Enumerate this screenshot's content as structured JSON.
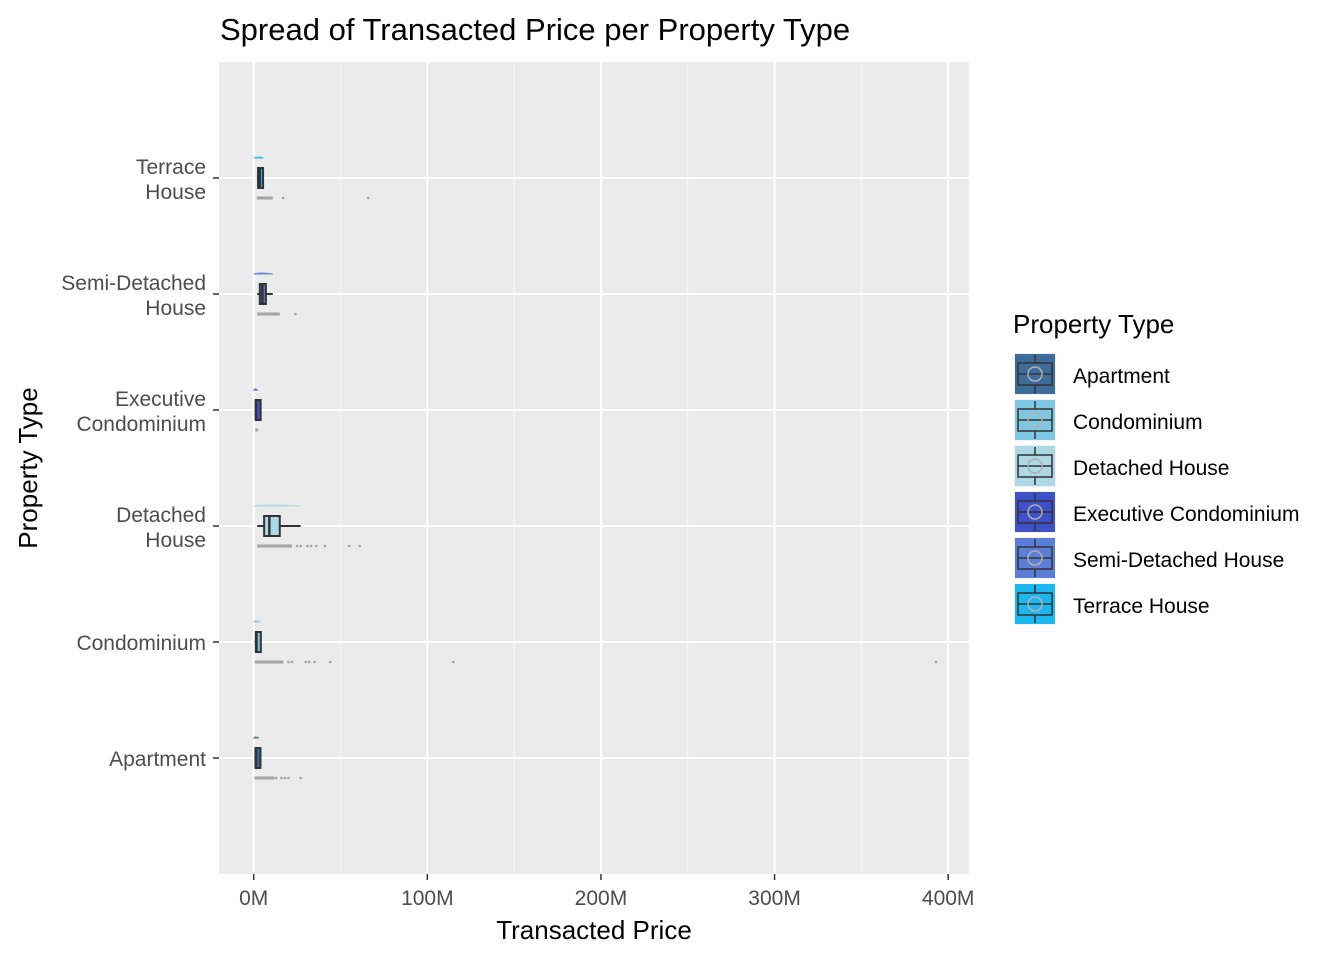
{
  "chart_data": {
    "type": "box",
    "title": "Spread of Transacted Price per Property Type",
    "xlabel": "Transacted Price",
    "ylabel": "Property Type",
    "xlim": [
      -20000000,
      412000000
    ],
    "x_ticks": [
      0,
      100000000,
      200000000,
      300000000,
      400000000
    ],
    "x_tick_labels": [
      "0M",
      "100M",
      "200M",
      "300M",
      "400M"
    ],
    "grid": true,
    "legend": {
      "title": "Property Type",
      "position": "right",
      "entries": [
        {
          "label": "Apartment",
          "color": "#3E6C9A"
        },
        {
          "label": "Condominium",
          "color": "#7EC8E3"
        },
        {
          "label": "Detached House",
          "color": "#ADD8E6"
        },
        {
          "label": "Executive Condominium",
          "color": "#3F51C8"
        },
        {
          "label": "Semi-Detached House",
          "color": "#5B7FD6"
        },
        {
          "label": "Terrace House",
          "color": "#1EB6EF"
        }
      ]
    },
    "categories": [
      {
        "label": [
          "Terrace",
          "House"
        ],
        "name": "Terrace House",
        "color": "#1EB6EF",
        "box": {
          "q1": 2500000,
          "median": 3500000,
          "q3": 4500000,
          "whisker_low": 1800000,
          "whisker_high": 5500000
        },
        "strip_max": 11000000,
        "outliers": [
          17000000,
          66000000
        ]
      },
      {
        "label": [
          "Semi-Detached",
          "House"
        ],
        "name": "Semi-Detached House",
        "color": "#5B7FD6",
        "box": {
          "q1": 3500000,
          "median": 5000000,
          "q3": 7000000,
          "whisker_low": 2000000,
          "whisker_high": 11000000
        },
        "strip_max": 15000000,
        "outliers": [
          24000000
        ]
      },
      {
        "label": [
          "Executive",
          "Condominium"
        ],
        "name": "Executive Condominium",
        "color": "#3F51C8",
        "box": {
          "q1": 1100000,
          "median": 1300000,
          "q3": 1600000,
          "whisker_low": 900000,
          "whisker_high": 2000000
        },
        "strip_max": 2500000,
        "outliers": []
      },
      {
        "label": [
          "Detached",
          "House"
        ],
        "name": "Detached House",
        "color": "#ADD8E6",
        "box": {
          "q1": 6000000,
          "median": 9000000,
          "q3": 15000000,
          "whisker_low": 2000000,
          "whisker_high": 27000000
        },
        "strip_max": 22000000,
        "outliers": [
          25000000,
          27000000,
          31000000,
          33000000,
          36000000,
          41000000,
          55000000,
          61000000
        ]
      },
      {
        "label": [
          "Condominium"
        ],
        "name": "Condominium",
        "color": "#7EC8E3",
        "box": {
          "q1": 1200000,
          "median": 1600000,
          "q3": 2300000,
          "whisker_low": 500000,
          "whisker_high": 3800000
        },
        "strip_max": 17000000,
        "outliers": [
          20000000,
          22000000,
          30000000,
          32000000,
          35000000,
          44000000,
          115000000,
          393000000
        ]
      },
      {
        "label": [
          "Apartment"
        ],
        "name": "Apartment",
        "color": "#3E6C9A",
        "box": {
          "q1": 1000000,
          "median": 1300000,
          "q3": 1800000,
          "whisker_low": 400000,
          "whisker_high": 3000000
        },
        "strip_max": 12000000,
        "outliers": [
          13000000,
          16000000,
          18000000,
          20000000,
          27000000
        ]
      }
    ]
  }
}
